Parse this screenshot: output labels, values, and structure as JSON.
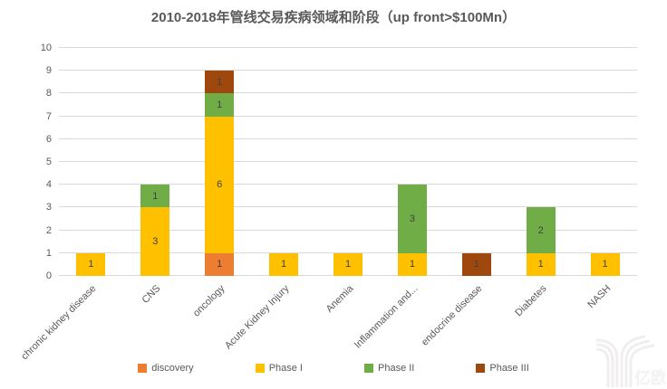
{
  "chart_data": {
    "type": "bar",
    "stacked": true,
    "title": "2010-2018年管线交易疾病领域和阶段（up front>$100Mn）",
    "categories": [
      "chronic kidney disease",
      "CNS",
      "oncology",
      "Acute Kidney Injury",
      "Anemia",
      "Inflammation and...",
      "endocrine disease",
      "Diabetes",
      "NASH"
    ],
    "series": [
      {
        "name": "discovery",
        "color": "#ED7D31",
        "values": [
          0,
          0,
          1,
          0,
          0,
          0,
          0,
          0,
          0
        ]
      },
      {
        "name": "Phase I",
        "color": "#FFC000",
        "values": [
          1,
          3,
          6,
          1,
          1,
          1,
          0,
          1,
          1
        ]
      },
      {
        "name": "Phase II",
        "color": "#70AD47",
        "values": [
          0,
          1,
          1,
          0,
          0,
          3,
          0,
          2,
          0
        ]
      },
      {
        "name": "Phase III",
        "color": "#9E480E",
        "values": [
          0,
          0,
          1,
          0,
          0,
          0,
          1,
          0,
          0
        ]
      }
    ],
    "totals": [
      1,
      4,
      9,
      1,
      1,
      4,
      1,
      3,
      1
    ],
    "xlabel": "",
    "ylabel": "",
    "ylim": [
      0,
      10
    ],
    "yticks": [
      0,
      1,
      2,
      3,
      4,
      5,
      6,
      7,
      8,
      9,
      10
    ],
    "grid": true,
    "bar_labels": true,
    "legend_position": "bottom"
  },
  "colors": {
    "title_text": "#595959",
    "axis_text": "#595959",
    "gridline": "#D9D9D9",
    "bar_label_text": "#404040",
    "background": "#FFFFFF",
    "watermark": "#F0EEEE"
  },
  "watermark": {
    "logo": "yiou-logo",
    "text": "亿欧"
  }
}
